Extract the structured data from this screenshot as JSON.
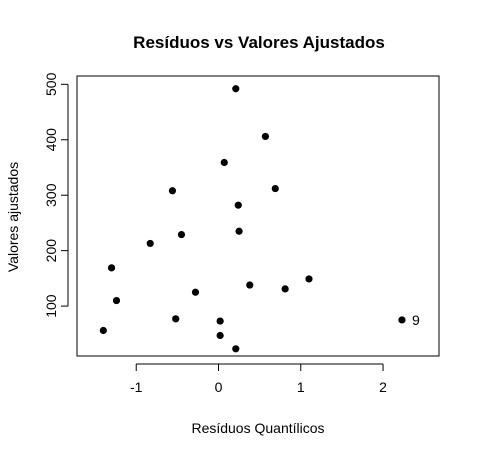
{
  "chart_data": {
    "type": "scatter",
    "title": "Resíduos vs Valores Ajustados",
    "xlabel": "Resíduos Quantílicos",
    "ylabel": "Valores ajustados",
    "xlim": [
      -1.72,
      2.68
    ],
    "ylim": [
      10,
      515
    ],
    "xticks": [
      -1,
      0,
      1,
      2
    ],
    "yticks": [
      100,
      200,
      300,
      400,
      500
    ],
    "grid": false,
    "points": [
      {
        "x": 0.21,
        "y": 492
      },
      {
        "x": 0.57,
        "y": 406
      },
      {
        "x": 0.07,
        "y": 359
      },
      {
        "x": 0.69,
        "y": 312
      },
      {
        "x": -0.56,
        "y": 308
      },
      {
        "x": 0.24,
        "y": 282
      },
      {
        "x": 0.25,
        "y": 235
      },
      {
        "x": -0.45,
        "y": 229
      },
      {
        "x": -0.83,
        "y": 213
      },
      {
        "x": -1.3,
        "y": 169
      },
      {
        "x": 1.1,
        "y": 149
      },
      {
        "x": 0.38,
        "y": 138
      },
      {
        "x": 0.81,
        "y": 131
      },
      {
        "x": -0.28,
        "y": 125
      },
      {
        "x": -1.24,
        "y": 110
      },
      {
        "x": -0.52,
        "y": 77
      },
      {
        "x": 2.23,
        "y": 75,
        "label": "9"
      },
      {
        "x": 0.02,
        "y": 73
      },
      {
        "x": -1.4,
        "y": 56
      },
      {
        "x": 0.02,
        "y": 47
      },
      {
        "x": 0.21,
        "y": 23
      }
    ]
  }
}
